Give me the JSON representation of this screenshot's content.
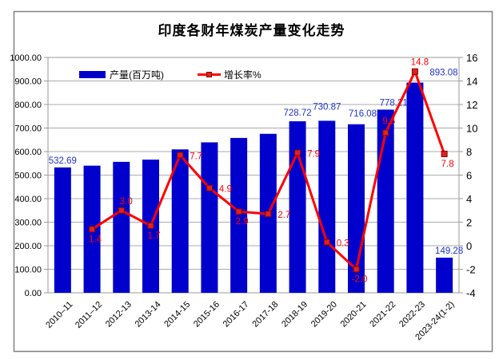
{
  "chart_data": {
    "type": "combo-bar-line",
    "title": "印度各财年煤炭产量变化走势",
    "categories": [
      "2010–11",
      "2011–12",
      "2012-13",
      "2013-14",
      "2014-15",
      "2015-16",
      "2016-17",
      "2017-18",
      "2018-19",
      "2019-20",
      "2020-21",
      "2021-22",
      "2022-23",
      "2023-24(1-2)"
    ],
    "series": [
      {
        "name": "产量(百万吨)",
        "type": "bar",
        "axis": "left",
        "color": "#0000CC",
        "label_color": "#2233CC",
        "values": [
          532.69,
          540.1,
          556.4,
          565.8,
          609.2,
          639.2,
          657.9,
          675.4,
          728.72,
          730.87,
          716.08,
          778.21,
          893.08,
          149.28
        ],
        "labels": [
          "532.69",
          null,
          null,
          null,
          null,
          null,
          null,
          null,
          "728.72",
          "730.87",
          "716.08",
          "778.21",
          "893.08",
          "149.28"
        ]
      },
      {
        "name": "增长率%",
        "type": "line",
        "axis": "right",
        "color": "#FF0000",
        "marker": "square",
        "values": [
          null,
          1.4,
          3.0,
          1.7,
          7.7,
          4.9,
          2.9,
          2.7,
          7.9,
          0.3,
          -2.0,
          9.6,
          14.8,
          7.8
        ],
        "labels": [
          null,
          "1.4",
          "3.0",
          "1.7",
          "7.7",
          "4.9",
          "2.9",
          "2.7",
          "7.9",
          "0.3",
          "-2.0",
          "9.6",
          "14.8",
          "7.8"
        ],
        "label_pos": [
          null,
          "below",
          "above",
          "below",
          "right",
          "right",
          "below",
          "right",
          "right",
          "right",
          "below",
          "above-left",
          "above",
          "below"
        ]
      }
    ],
    "left_axis": {
      "min": 0,
      "max": 1000,
      "step": 100,
      "tick_labels": [
        "1000.00",
        "900.00",
        "800.00",
        "700.00",
        "600.00",
        "500.00",
        "400.00",
        "300.00",
        "200.00",
        "100.00",
        "0.00"
      ]
    },
    "right_axis": {
      "min": -4,
      "max": 16,
      "step": 2,
      "tick_labels": [
        "16",
        "14",
        "12",
        "10",
        "8",
        "6",
        "4",
        "2",
        "0",
        "-2",
        "-4"
      ]
    },
    "legend": {
      "position": "top-inside"
    },
    "grid": true,
    "grid_color": "#ABABAB",
    "frame_color": "#9A9A9A",
    "outer_border_color": "#808080",
    "axis_text_color": "#000000"
  }
}
